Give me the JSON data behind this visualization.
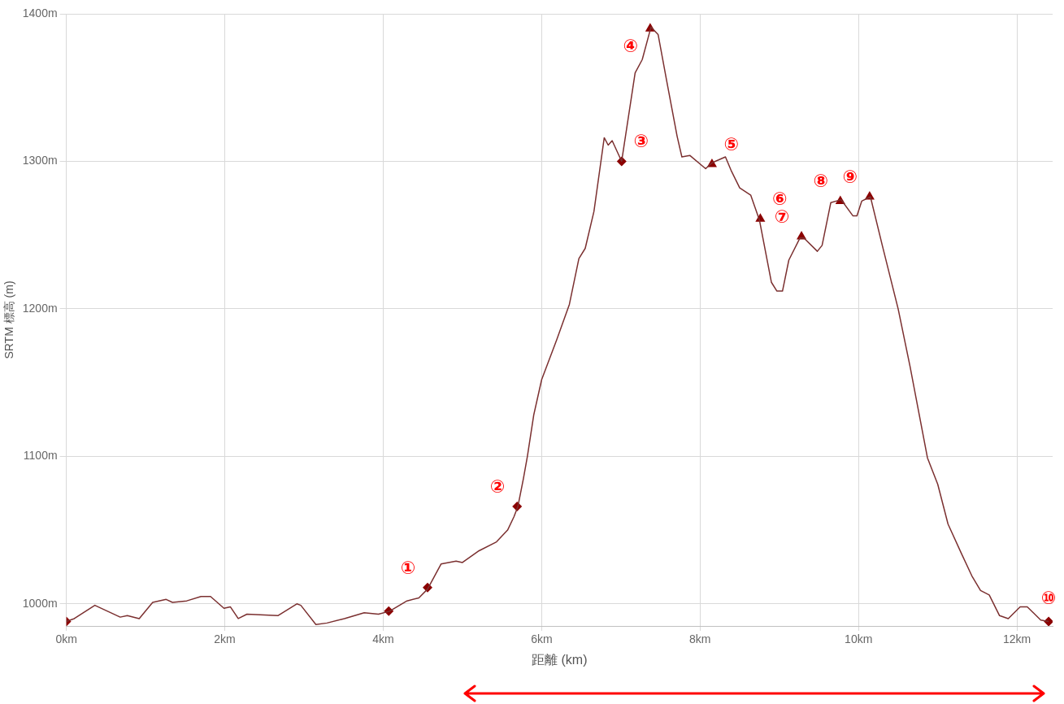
{
  "chart_data": {
    "type": "line",
    "xlabel": "距離 (km)",
    "ylabel": "SRTM 標高 (m)",
    "xlim": [
      0,
      12.45
    ],
    "ylim": [
      985,
      1400
    ],
    "xticks": [
      {
        "value": 0,
        "label": "0km"
      },
      {
        "value": 2,
        "label": "2km"
      },
      {
        "value": 4,
        "label": "4km"
      },
      {
        "value": 6,
        "label": "6km"
      },
      {
        "value": 8,
        "label": "8km"
      },
      {
        "value": 10,
        "label": "10km"
      },
      {
        "value": 12,
        "label": "12km"
      }
    ],
    "yticks": [
      {
        "value": 1000,
        "label": "1000m"
      },
      {
        "value": 1100,
        "label": "1100m"
      },
      {
        "value": 1200,
        "label": "1200m"
      },
      {
        "value": 1300,
        "label": "1300m"
      },
      {
        "value": 1400,
        "label": "1400m"
      }
    ],
    "grid": true,
    "legend": false,
    "series": [
      {
        "color": "#7b3030",
        "marker": "none",
        "x": [
          0,
          0.1,
          0.36,
          0.68,
          0.77,
          0.92,
          1.09,
          1.26,
          1.34,
          1.52,
          1.7,
          1.82,
          1.99,
          2.07,
          2.17,
          2.28,
          2.67,
          2.91,
          2.96,
          3.15,
          3.29,
          3.51,
          3.76,
          3.94,
          4.08,
          4.3,
          4.45,
          4.56,
          4.73,
          4.92,
          5.0,
          5.21,
          5.43,
          5.57,
          5.65,
          5.7,
          5.77,
          5.82,
          5.9,
          6.0,
          6.19,
          6.35,
          6.47,
          6.55,
          6.66,
          6.79,
          6.84,
          6.89,
          7.01,
          7.18,
          7.27,
          7.38,
          7.47,
          7.58,
          7.71,
          7.77,
          7.87,
          8.07,
          8.15,
          8.32,
          8.39,
          8.5,
          8.64,
          8.75,
          8.9,
          8.97,
          9.04,
          9.12,
          9.26,
          9.31,
          9.48,
          9.54,
          9.65,
          9.78,
          9.93,
          9.98,
          10.04,
          10.15,
          10.3,
          10.5,
          10.65,
          10.87,
          11.0,
          11.13,
          11.3,
          11.43,
          11.54,
          11.65,
          11.78,
          11.89,
          12.04,
          12.13,
          12.3,
          12.4
        ],
        "values": [
          988,
          990,
          999,
          991,
          992,
          990,
          1001,
          1003,
          1001,
          1002,
          1005,
          1005,
          997,
          998,
          990,
          993,
          992,
          1000,
          999,
          986,
          987,
          990,
          994,
          993,
          995,
          1002,
          1004,
          1010,
          1027,
          1029,
          1028,
          1036,
          1042,
          1050,
          1059,
          1066,
          1085,
          1100,
          1128,
          1152,
          1179,
          1203,
          1234,
          1241,
          1266,
          1316,
          1311,
          1314,
          1300,
          1360,
          1369,
          1391,
          1386,
          1354,
          1317,
          1303,
          1304,
          1295,
          1299,
          1303,
          1294,
          1282,
          1277,
          1260,
          1218,
          1212,
          1212,
          1233,
          1248,
          1248,
          1239,
          1243,
          1272,
          1274,
          1263,
          1263,
          1273,
          1276,
          1243,
          1200,
          1161,
          1099,
          1081,
          1054,
          1034,
          1019,
          1009,
          1006,
          992,
          990,
          998,
          998,
          989,
          988
        ]
      },
      {
        "type": "scatter",
        "color": "#8b0000",
        "marker": "diamond",
        "x": [
          0,
          4.07,
          4.56,
          5.69,
          7.01,
          12.4
        ],
        "values": [
          988,
          995,
          1011,
          1066,
          1300,
          988
        ]
      },
      {
        "type": "scatter",
        "color": "#8b0000",
        "marker": "triangle",
        "x": [
          7.37,
          8.15,
          8.76,
          9.28,
          9.77,
          10.14
        ],
        "values": [
          1390,
          1298,
          1261,
          1249,
          1273,
          1276
        ]
      }
    ],
    "annotations": [
      {
        "text": "①",
        "x": 4.56,
        "y": 1011
      },
      {
        "text": "②",
        "x": 5.69,
        "y": 1066
      },
      {
        "text": "③",
        "x": 7.01,
        "y": 1300
      },
      {
        "text": "④",
        "x": 7.37,
        "y": 1390
      },
      {
        "text": "⑤",
        "x": 8.15,
        "y": 1298
      },
      {
        "text": "⑥",
        "x": 8.76,
        "y": 1261
      },
      {
        "text": "⑦",
        "x": 9.28,
        "y": 1249
      },
      {
        "text": "⑧",
        "x": 9.77,
        "y": 1273
      },
      {
        "text": "⑨",
        "x": 10.14,
        "y": 1276
      },
      {
        "text": "⑩",
        "x": 12.4,
        "y": 988
      }
    ]
  }
}
